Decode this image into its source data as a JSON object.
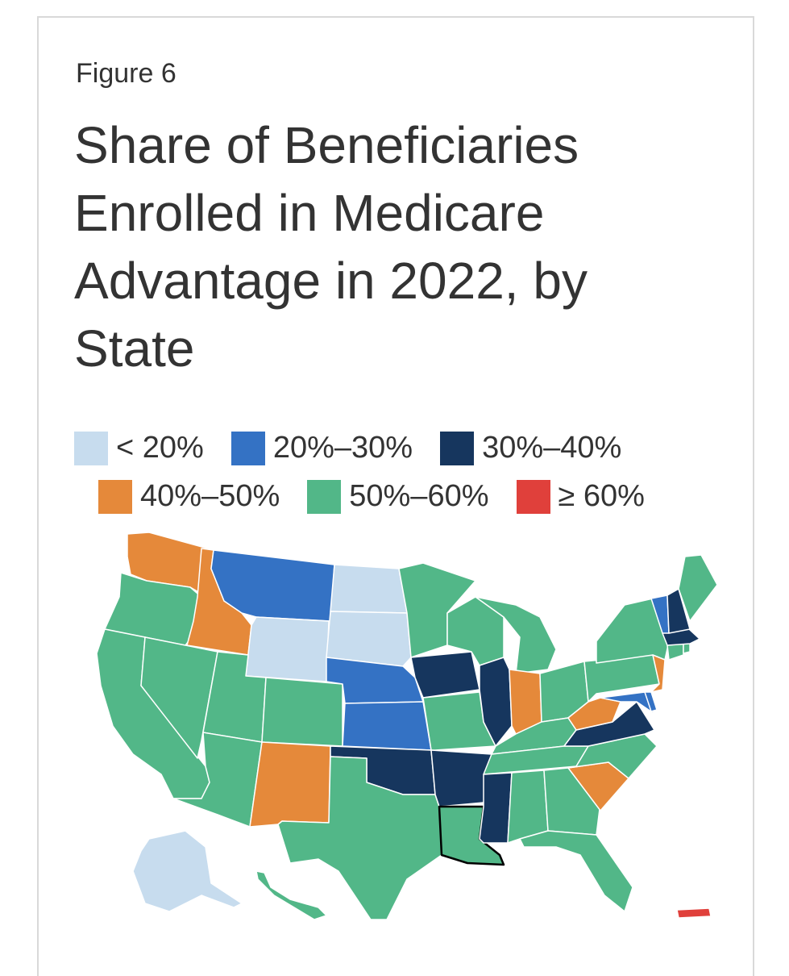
{
  "figure_label": "Figure 6",
  "title": "Share of Beneficiaries Enrolled in Medicare Advantage in 2022, by State",
  "legend": [
    {
      "label": "< 20%",
      "color": "#c7dcee"
    },
    {
      "label": "20%–30%",
      "color": "#3472c4"
    },
    {
      "label": "30%–40%",
      "color": "#16365e"
    },
    {
      "label": "40%–50%",
      "color": "#e5893a"
    },
    {
      "label": "50%–60%",
      "color": "#52b788"
    },
    {
      "label": "≥ 60%",
      "color": "#e0403b"
    }
  ],
  "states": {
    "WA": "40%–50%",
    "OR": "50%–60%",
    "CA": "50%–60%",
    "ID": "40%–50%",
    "NV": "50%–60%",
    "MT": "20%–30%",
    "WY": "< 20%",
    "UT": "50%–60%",
    "AZ": "50%–60%",
    "CO": "50%–60%",
    "NM": "40%–50%",
    "ND": "< 20%",
    "SD": "< 20%",
    "NE": "20%–30%",
    "KS": "20%–30%",
    "OK": "30%–40%",
    "TX": "50%–60%",
    "MN": "50%–60%",
    "IA": "30%–40%",
    "MO": "50%–60%",
    "AR": "30%–40%",
    "LA": "50%–60%",
    "WI": "50%–60%",
    "IL": "30%–40%",
    "MI": "50%–60%",
    "IN": "40%–50%",
    "OH": "50%–60%",
    "KY": "50%–60%",
    "TN": "50%–60%",
    "MS": "30%–40%",
    "AL": "50%–60%",
    "GA": "50%–60%",
    "FL": "50%–60%",
    "SC": "40%–50%",
    "NC": "50%–60%",
    "VA": "30%–40%",
    "WV": "40%–50%",
    "PA": "50%–60%",
    "NY": "50%–60%",
    "NJ": "40%–50%",
    "DE": "20%–30%",
    "MD": "20%–30%",
    "CT": "50%–60%",
    "RI": "50%–60%",
    "MA": "30%–40%",
    "VT": "20%–30%",
    "NH": "30%–40%",
    "ME": "50%–60%",
    "AK": "< 20%",
    "HI": "50%–60%",
    "PR": "≥ 60%"
  }
}
